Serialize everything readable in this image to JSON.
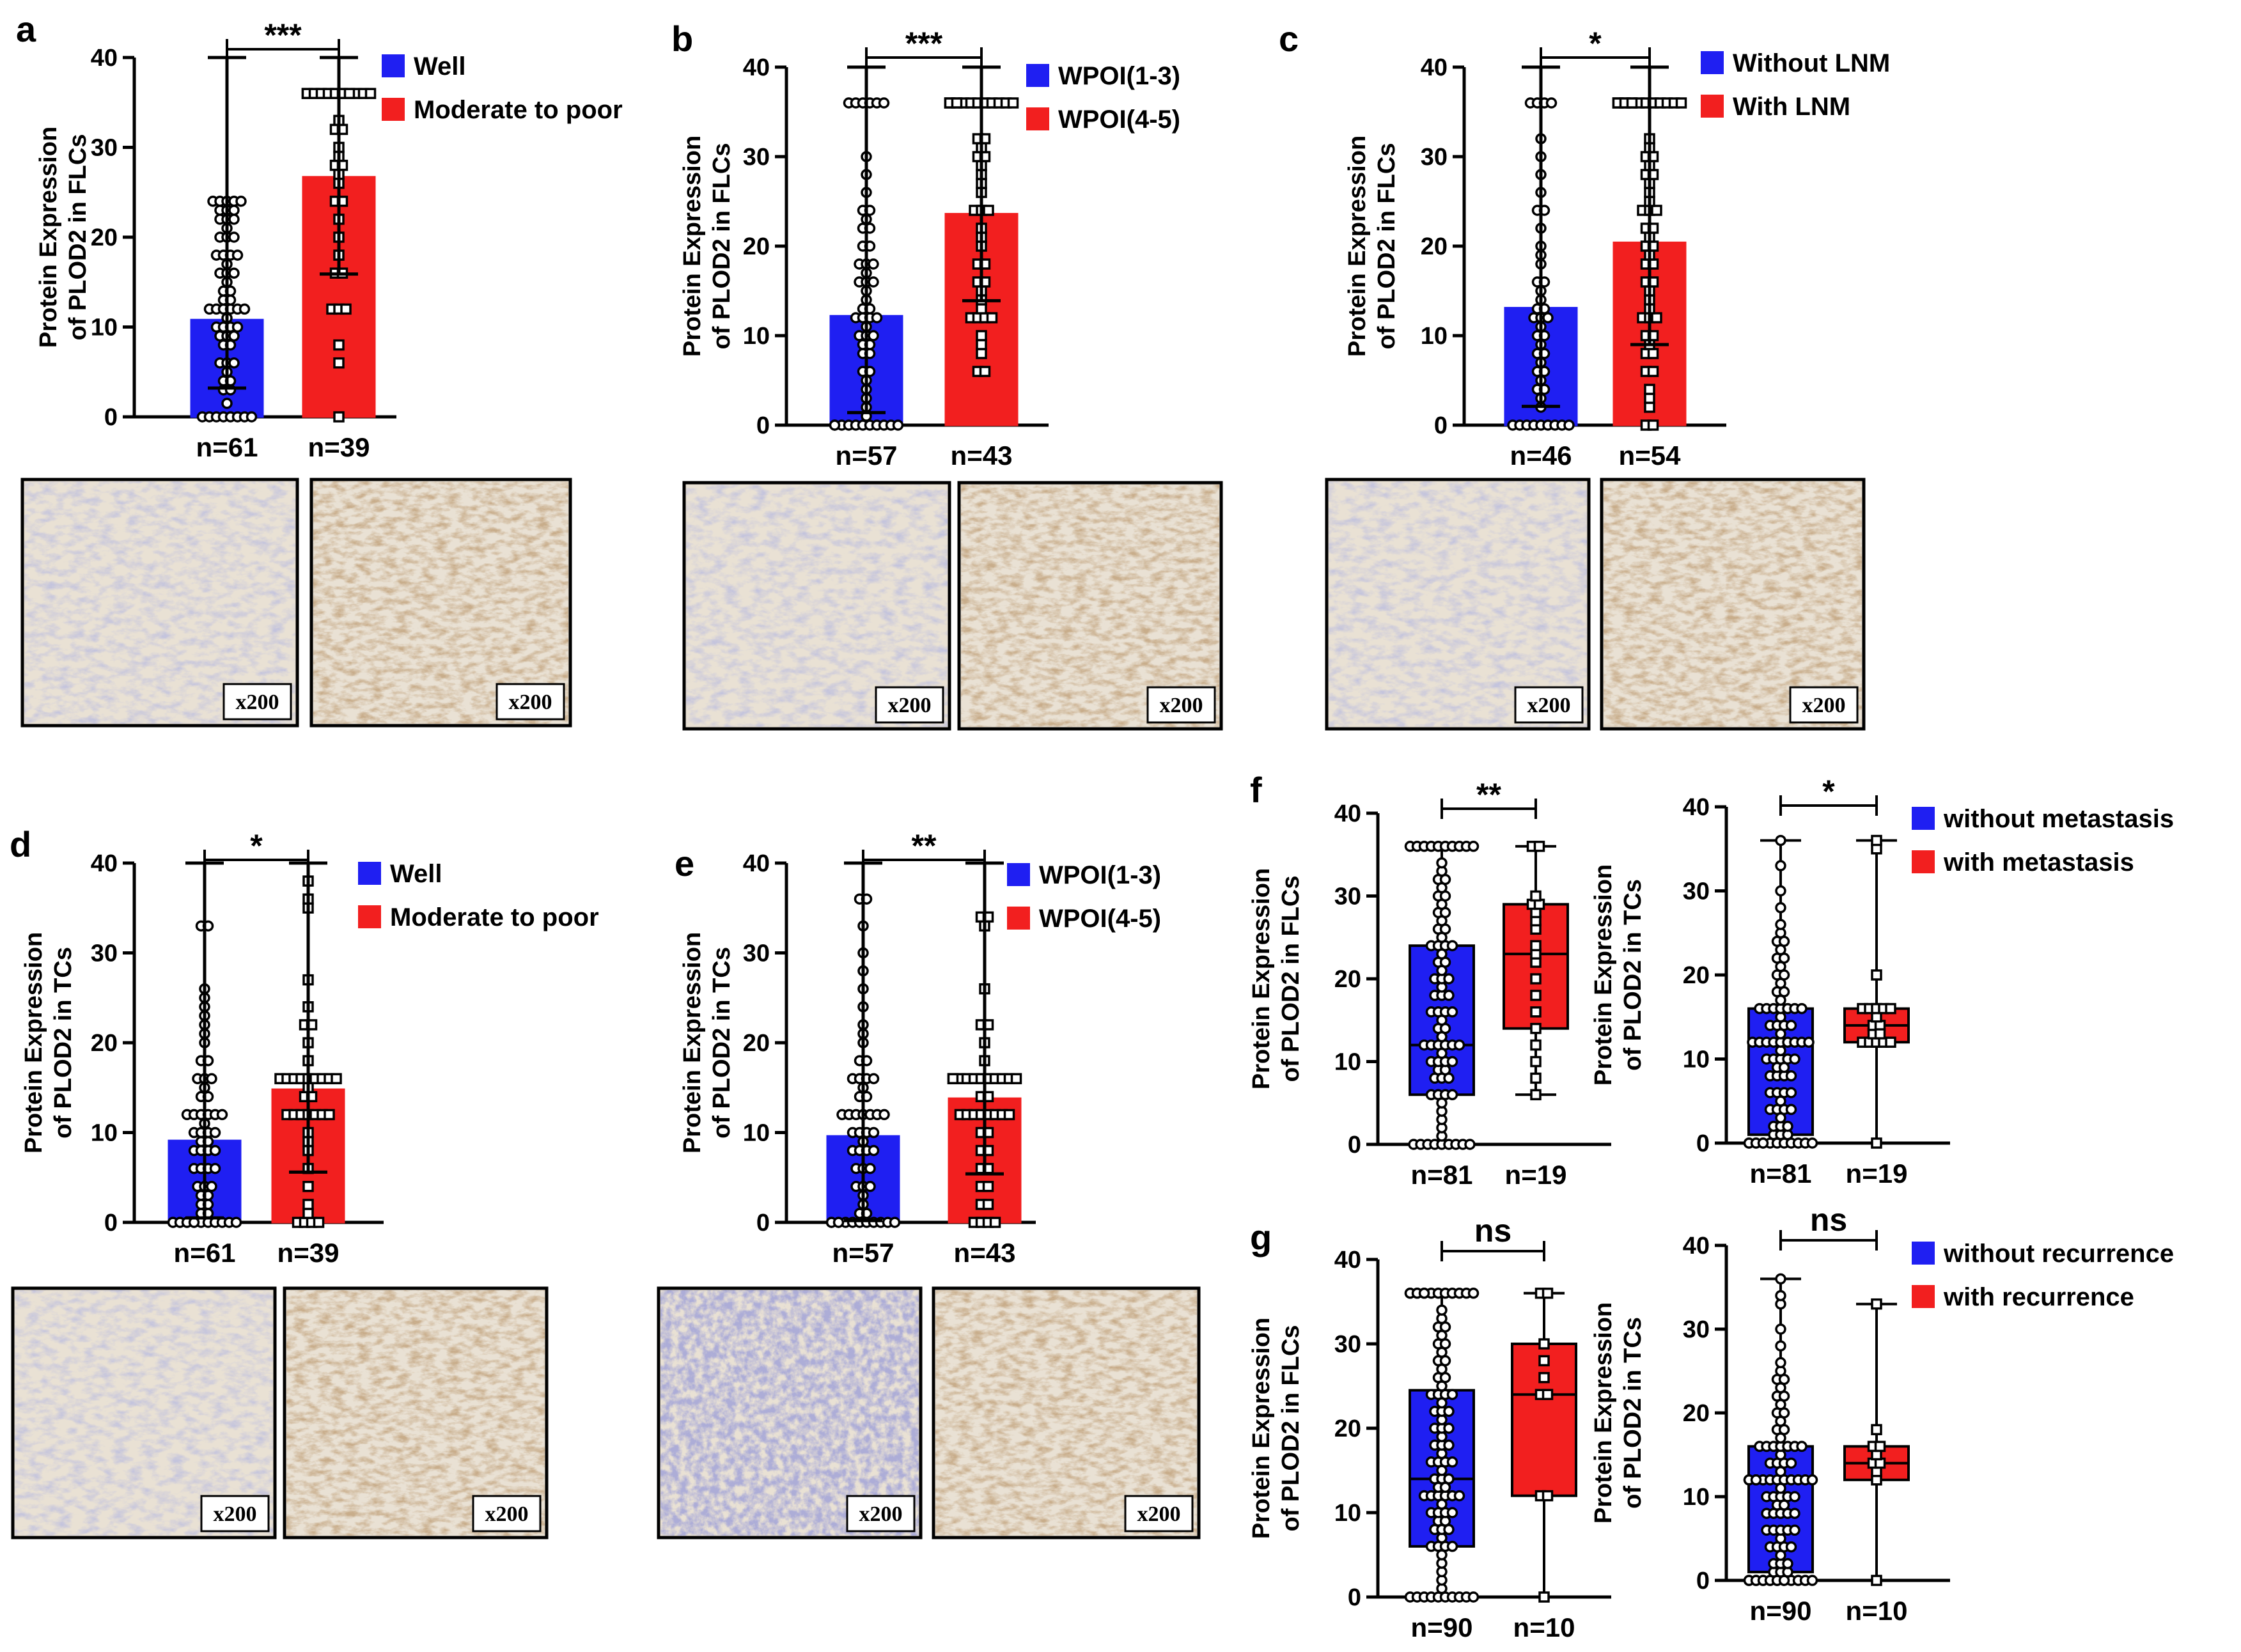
{
  "colors": {
    "group1": "#1f1ff2",
    "group2": "#f21f1f",
    "axis": "#000000"
  },
  "yAxisTicks": [
    "0",
    "10",
    "20",
    "30",
    "40"
  ],
  "magnification": "x200",
  "chart_data": [
    {
      "letter": "a",
      "type": "bar",
      "title": "",
      "ylabel": [
        "Protein Expression",
        "of PLOD2 in FLCs"
      ],
      "ylim": [
        0,
        40
      ],
      "categories": [
        "n=61",
        "n=39"
      ],
      "legend": [
        "Well",
        "Moderate to poor"
      ],
      "bars": [
        {
          "mean": 10.8,
          "sd": 7.6
        },
        {
          "mean": 26.7,
          "sd": 10.8
        }
      ],
      "points": [
        [
          0,
          0,
          0,
          0,
          0,
          0,
          0,
          0,
          1.5,
          3,
          3,
          4,
          4,
          5,
          6,
          6,
          6,
          8,
          8,
          9,
          9,
          9,
          10,
          10,
          10,
          10,
          11,
          12,
          12,
          12,
          12,
          12,
          12,
          13,
          13,
          14,
          14,
          15,
          16,
          16,
          16,
          17,
          18,
          18,
          18,
          18,
          20,
          20,
          20,
          21,
          22,
          22,
          22,
          23,
          23,
          23,
          24,
          24,
          24,
          24,
          24
        ],
        [
          0,
          6,
          8,
          12,
          12,
          12,
          16,
          16,
          18,
          20,
          22,
          24,
          24,
          26,
          27,
          28,
          28,
          29,
          30,
          32,
          32,
          33,
          36,
          36,
          36,
          36,
          36,
          36,
          36,
          36,
          36,
          36,
          36,
          36,
          36,
          36,
          36,
          36,
          36
        ]
      ],
      "significance": "***",
      "images": [
        "micrograph-well",
        "micrograph-moderate-to-poor"
      ]
    },
    {
      "letter": "b",
      "type": "bar",
      "title": "",
      "ylabel": [
        "Protein Expression",
        "of PLOD2 in FLCs"
      ],
      "ylim": [
        0,
        40
      ],
      "categories": [
        "n=57",
        "n=43"
      ],
      "legend": [
        "WPOI(1-3)",
        "WPOI(4-5)"
      ],
      "bars": [
        {
          "mean": 12.2,
          "sd": 10.8
        },
        {
          "mean": 23.6,
          "sd": 9.7
        }
      ],
      "points": [
        [
          0,
          0,
          0,
          0,
          0,
          0,
          0,
          0,
          0,
          0,
          0,
          1,
          2,
          3,
          4,
          5,
          6,
          6,
          8,
          8,
          9,
          9,
          10,
          10,
          10,
          11,
          12,
          12,
          12,
          12,
          13,
          13,
          14,
          15,
          16,
          16,
          16,
          17,
          18,
          18,
          18,
          20,
          20,
          22,
          22,
          23,
          24,
          24,
          26,
          28,
          30,
          36,
          36,
          36,
          36,
          36,
          36
        ],
        [
          6,
          6,
          8,
          9,
          10,
          12,
          12,
          12,
          12,
          13,
          14,
          15,
          16,
          16,
          18,
          18,
          20,
          21,
          22,
          24,
          24,
          24,
          26,
          27,
          28,
          29,
          30,
          30,
          31,
          32,
          32,
          36,
          36,
          36,
          36,
          36,
          36,
          36,
          36,
          36,
          36,
          36,
          36
        ]
      ],
      "significance": "***",
      "images": [
        "micrograph-wpoi-1-3",
        "micrograph-wpoi-4-5"
      ]
    },
    {
      "letter": "c",
      "type": "bar",
      "title": "",
      "ylabel": [
        "Protein Expression",
        "of PLOD2 in FLCs"
      ],
      "ylim": [
        0,
        40
      ],
      "categories": [
        "n=46",
        "n=54"
      ],
      "legend": [
        "Without LNM",
        "With LNM"
      ],
      "bars": [
        {
          "mean": 13.1,
          "sd": 11.0
        },
        {
          "mean": 20.4,
          "sd": 11.4
        }
      ],
      "points": [
        [
          0,
          0,
          0,
          0,
          0,
          0,
          0,
          0,
          0,
          2,
          3,
          4,
          4,
          5,
          6,
          6,
          7,
          8,
          8,
          9,
          10,
          10,
          11,
          12,
          12,
          12,
          13,
          13,
          14,
          15,
          16,
          16,
          18,
          19,
          20,
          22,
          24,
          24,
          26,
          28,
          30,
          32,
          36,
          36,
          36,
          36
        ],
        [
          0,
          0,
          2,
          3,
          4,
          6,
          6,
          8,
          8,
          9,
          10,
          10,
          12,
          12,
          12,
          13,
          14,
          15,
          16,
          16,
          18,
          18,
          19,
          20,
          20,
          21,
          22,
          22,
          24,
          24,
          24,
          25,
          26,
          27,
          28,
          28,
          29,
          30,
          30,
          31,
          32,
          36,
          36,
          36,
          36,
          36,
          36,
          36,
          36,
          36,
          36,
          36,
          36,
          36
        ]
      ],
      "significance": "*",
      "images": [
        "micrograph-without-lnm",
        "micrograph-with-lnm"
      ]
    },
    {
      "letter": "d",
      "type": "bar",
      "title": "",
      "ylabel": [
        "Protein Expression",
        "of PLOD2 in TCs"
      ],
      "ylim": [
        0,
        40
      ],
      "categories": [
        "n=61",
        "n=39"
      ],
      "legend": [
        "Well",
        "Moderate to poor"
      ],
      "bars": [
        {
          "mean": 9.1,
          "sd": 8.6
        },
        {
          "mean": 14.8,
          "sd": 9.2
        }
      ],
      "points": [
        [
          0,
          0,
          0,
          0,
          0,
          0,
          0,
          0,
          0,
          0,
          0,
          0,
          0,
          0,
          1,
          1,
          2,
          2,
          3,
          3,
          4,
          4,
          4,
          6,
          6,
          6,
          6,
          8,
          8,
          8,
          8,
          9,
          9,
          10,
          10,
          10,
          10,
          11,
          12,
          12,
          12,
          12,
          12,
          12,
          14,
          14,
          15,
          16,
          16,
          16,
          18,
          18,
          20,
          21,
          22,
          23,
          24,
          25,
          26,
          33,
          33
        ],
        [
          0,
          0,
          0,
          0,
          1,
          2,
          4,
          6,
          8,
          9,
          10,
          12,
          12,
          12,
          12,
          12,
          12,
          14,
          14,
          15,
          16,
          16,
          16,
          16,
          16,
          16,
          16,
          16,
          18,
          20,
          22,
          22,
          24,
          27,
          35,
          36,
          38,
          16,
          12
        ]
      ],
      "significance": "*",
      "images": [
        "micrograph-tc-well",
        "micrograph-tc-moderate-to-poor"
      ]
    },
    {
      "letter": "e",
      "type": "bar",
      "title": "",
      "ylabel": [
        "Protein Expression",
        "of PLOD2 in TCs"
      ],
      "ylim": [
        0,
        40
      ],
      "categories": [
        "n=57",
        "n=43"
      ],
      "legend": [
        "WPOI(1-3)",
        "WPOI(4-5)"
      ],
      "bars": [
        {
          "mean": 9.6,
          "sd": 9.4
        },
        {
          "mean": 13.8,
          "sd": 8.4
        }
      ],
      "points": [
        [
          0,
          0,
          0,
          0,
          0,
          0,
          0,
          0,
          0,
          0,
          0,
          0,
          1,
          1,
          2,
          3,
          4,
          4,
          6,
          6,
          6,
          8,
          8,
          8,
          9,
          10,
          10,
          10,
          10,
          12,
          12,
          12,
          12,
          12,
          14,
          14,
          15,
          16,
          16,
          16,
          16,
          18,
          18,
          20,
          21,
          22,
          24,
          26,
          28,
          30,
          33,
          36,
          36,
          12,
          12,
          8,
          4
        ],
        [
          0,
          0,
          0,
          0,
          2,
          4,
          6,
          8,
          10,
          10,
          12,
          12,
          12,
          12,
          12,
          12,
          14,
          14,
          16,
          16,
          16,
          16,
          16,
          16,
          16,
          16,
          16,
          16,
          18,
          20,
          22,
          22,
          26,
          34,
          34,
          33,
          16,
          12,
          12,
          8,
          6,
          4,
          2
        ]
      ],
      "significance": "**",
      "images": [
        "micrograph-tc-wpoi-1-3",
        "micrograph-tc-wpoi-4-5"
      ]
    },
    {
      "letter": "f",
      "type": "box",
      "ylabel": [
        "Protein Expression",
        "of PLOD2 in FLCs"
      ],
      "ylim": [
        0,
        40
      ],
      "categories": [
        "n=81",
        "n=19"
      ],
      "boxes": [
        {
          "min": 0,
          "q1": 6,
          "median": 12,
          "q3": 24,
          "max": 36
        },
        {
          "min": 6,
          "q1": 14,
          "median": 23,
          "q3": 29,
          "max": 36
        }
      ],
      "points": [
        [
          0,
          0,
          0,
          0,
          0,
          0,
          0,
          0,
          0,
          1,
          2,
          3,
          4,
          5,
          6,
          6,
          6,
          6,
          8,
          8,
          8,
          9,
          9,
          10,
          10,
          10,
          10,
          11,
          12,
          12,
          12,
          12,
          12,
          12,
          13,
          14,
          14,
          15,
          16,
          16,
          16,
          16,
          18,
          18,
          18,
          19,
          20,
          20,
          20,
          21,
          22,
          22,
          23,
          24,
          24,
          24,
          24,
          25,
          26,
          26,
          27,
          28,
          28,
          29,
          30,
          30,
          31,
          32,
          32,
          33,
          34,
          36,
          36,
          36,
          36,
          36,
          36,
          36,
          36,
          36,
          36
        ],
        [
          6,
          8,
          10,
          12,
          14,
          16,
          18,
          20,
          22,
          23,
          24,
          26,
          27,
          28,
          29,
          29,
          30,
          36,
          36
        ]
      ],
      "significance": "**"
    },
    {
      "letter": "f",
      "type": "box",
      "ylabel": [
        "Protein Expression",
        "of PLOD2 in TCs"
      ],
      "ylim": [
        0,
        40
      ],
      "categories": [
        "n=81",
        "n=19"
      ],
      "legend": [
        "without metastasis",
        "with metastasis"
      ],
      "boxes": [
        {
          "min": 0,
          "q1": 1,
          "median": 12,
          "q3": 16,
          "max": 36
        },
        {
          "min": 0,
          "q1": 12,
          "median": 14,
          "q3": 16,
          "max": 36
        }
      ],
      "points": [
        [
          0,
          0,
          0,
          0,
          0,
          0,
          0,
          0,
          0,
          0,
          0,
          0,
          0,
          1,
          1,
          1,
          2,
          2,
          3,
          4,
          4,
          4,
          5,
          6,
          6,
          6,
          8,
          8,
          8,
          9,
          9,
          10,
          10,
          10,
          10,
          11,
          12,
          12,
          12,
          12,
          12,
          12,
          12,
          13,
          14,
          14,
          14,
          15,
          16,
          16,
          16,
          16,
          16,
          16,
          17,
          18,
          18,
          19,
          20,
          20,
          21,
          22,
          22,
          23,
          24,
          24,
          25,
          26,
          28,
          30,
          33,
          36,
          12,
          12,
          8,
          6,
          4,
          2,
          16,
          14,
          10
        ],
        [
          0,
          12,
          12,
          12,
          12,
          13,
          14,
          14,
          15,
          16,
          16,
          16,
          16,
          16,
          12,
          13,
          20,
          35,
          36
        ]
      ],
      "significance": "*"
    },
    {
      "letter": "g",
      "type": "box",
      "ylabel": [
        "Protein Expression",
        "of PLOD2 in FLCs"
      ],
      "ylim": [
        0,
        40
      ],
      "categories": [
        "n=90",
        "n=10"
      ],
      "boxes": [
        {
          "min": 0,
          "q1": 6,
          "median": 14,
          "q3": 24.5,
          "max": 36
        },
        {
          "min": 0,
          "q1": 12,
          "median": 24,
          "q3": 30,
          "max": 36
        }
      ],
      "points": [
        [
          0,
          0,
          0,
          0,
          0,
          0,
          0,
          0,
          0,
          0,
          1,
          2,
          3,
          4,
          5,
          6,
          6,
          6,
          6,
          7,
          8,
          8,
          8,
          9,
          9,
          10,
          10,
          10,
          10,
          11,
          12,
          12,
          12,
          12,
          12,
          12,
          13,
          13,
          14,
          14,
          14,
          15,
          16,
          16,
          16,
          16,
          17,
          18,
          18,
          18,
          19,
          20,
          20,
          20,
          21,
          22,
          22,
          22,
          23,
          24,
          24,
          24,
          24,
          25,
          26,
          26,
          27,
          28,
          28,
          29,
          30,
          30,
          31,
          32,
          32,
          33,
          34,
          36,
          36,
          36,
          36,
          36,
          36,
          36,
          36,
          36,
          36,
          36,
          36,
          36
        ],
        [
          0,
          12,
          12,
          24,
          24,
          26,
          28,
          30,
          36,
          36
        ]
      ],
      "significance": "ns"
    },
    {
      "letter": "g",
      "type": "box",
      "ylabel": [
        "Protein Expression",
        "of PLOD2 in TCs"
      ],
      "ylim": [
        0,
        40
      ],
      "categories": [
        "n=90",
        "n=10"
      ],
      "legend": [
        "without recurrence",
        "with recurrence"
      ],
      "boxes": [
        {
          "min": 0,
          "q1": 1,
          "median": 12,
          "q3": 16,
          "max": 36
        },
        {
          "min": 0,
          "q1": 12,
          "median": 14,
          "q3": 16,
          "max": 33
        }
      ],
      "points": [
        [
          0,
          0,
          0,
          0,
          0,
          0,
          0,
          0,
          0,
          0,
          0,
          0,
          0,
          0,
          1,
          1,
          1,
          2,
          2,
          3,
          4,
          4,
          4,
          5,
          6,
          6,
          6,
          8,
          8,
          8,
          9,
          9,
          10,
          10,
          10,
          10,
          11,
          12,
          12,
          12,
          12,
          12,
          12,
          12,
          13,
          14,
          14,
          14,
          15,
          16,
          16,
          16,
          16,
          16,
          16,
          17,
          18,
          18,
          19,
          20,
          20,
          21,
          22,
          22,
          23,
          24,
          24,
          25,
          26,
          28,
          30,
          33,
          34,
          36,
          12,
          12,
          8,
          6,
          4,
          2,
          16,
          14,
          10,
          12,
          12,
          12,
          0,
          0,
          6,
          8
        ],
        [
          0,
          12,
          13,
          14,
          14,
          15,
          16,
          16,
          18,
          33
        ]
      ],
      "significance": "ns"
    }
  ]
}
